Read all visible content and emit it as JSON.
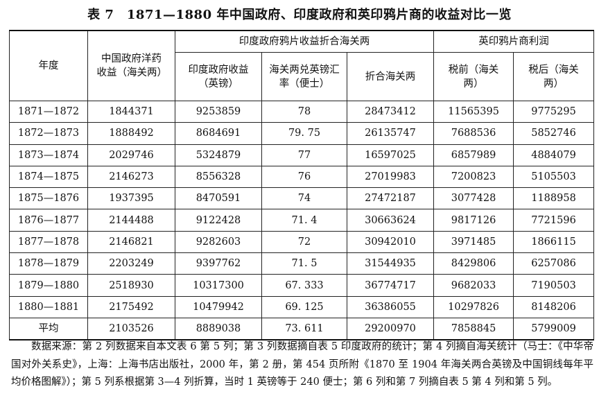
{
  "title": "表 7　1871—1880 年中国政府、印度政府和英印鸦片商的收益对比一览",
  "headers": {
    "year": "年度",
    "china_revenue": "中国政府洋药收益（海关两）",
    "india_group": "印度政府鸦片收益折合海关两",
    "india_pounds": "印度政府收益（英镑）",
    "exchange_rate": "海关两兑英镑汇率（便士）",
    "india_taels": "折合海关两",
    "merchant_group": "英印鸦片商利润",
    "pre_tax": "税前（海关两）",
    "post_tax": "税后（海关两）"
  },
  "rows": [
    {
      "year": "1871—1872",
      "china": "1844371",
      "india_gbp": "9253859",
      "rate": "78",
      "india_taels": "28473412",
      "pre_tax": "11565395",
      "post_tax": "9775295"
    },
    {
      "year": "1872—1873",
      "china": "1888492",
      "india_gbp": "8684691",
      "rate": "79. 75",
      "india_taels": "26135747",
      "pre_tax": "7688536",
      "post_tax": "5852746"
    },
    {
      "year": "1873—1874",
      "china": "2029746",
      "india_gbp": "5324879",
      "rate": "77",
      "india_taels": "16597025",
      "pre_tax": "6857989",
      "post_tax": "4884079"
    },
    {
      "year": "1874—1875",
      "china": "2146273",
      "india_gbp": "8556328",
      "rate": "76",
      "india_taels": "27019983",
      "pre_tax": "7200823",
      "post_tax": "5105503"
    },
    {
      "year": "1875—1876",
      "china": "1937395",
      "india_gbp": "8470591",
      "rate": "74",
      "india_taels": "27472187",
      "pre_tax": "3077428",
      "post_tax": "1188958"
    },
    {
      "year": "1876—1877",
      "china": "2144488",
      "india_gbp": "9122428",
      "rate": "71. 4",
      "india_taels": "30663624",
      "pre_tax": "9817126",
      "post_tax": "7721596"
    },
    {
      "year": "1877—1878",
      "china": "2146821",
      "india_gbp": "9282603",
      "rate": "72",
      "india_taels": "30942010",
      "pre_tax": "3971485",
      "post_tax": "1866115"
    },
    {
      "year": "1878—1879",
      "china": "2203249",
      "india_gbp": "9397762",
      "rate": "71. 5",
      "india_taels": "31544935",
      "pre_tax": "8429806",
      "post_tax": "6257086"
    },
    {
      "year": "1879—1880",
      "china": "2518930",
      "india_gbp": "10317300",
      "rate": "67. 333",
      "india_taels": "36774717",
      "pre_tax": "9682033",
      "post_tax": "7190503"
    },
    {
      "year": "1880—1881",
      "china": "2175492",
      "india_gbp": "10479942",
      "rate": "69. 125",
      "india_taels": "36386055",
      "pre_tax": "10297826",
      "post_tax": "8148206"
    },
    {
      "year": "平均",
      "china": "2103526",
      "india_gbp": "8889038",
      "rate": "73. 611",
      "india_taels": "29200970",
      "pre_tax": "7858845",
      "post_tax": "5799009"
    }
  ],
  "note": "数据来源：第 2 列数据来自本文表 6 第 5 列；第 3 列数据摘自表 5 印度政府的统计；第 4 列摘自海关统计（马士：《中华帝国对外关系史》，上海：上海书店出版社，2000 年，第 2 册，第 454 页所附《1870 至 1904 年海关两合英镑及中国铜线每年平均价格图解》）；第 5 列系根据第 3—4 列折算，当时 1 英镑等于 240 便士；第 6 列和第 7 列摘自表 5 第 4 列和第 5 列。"
}
